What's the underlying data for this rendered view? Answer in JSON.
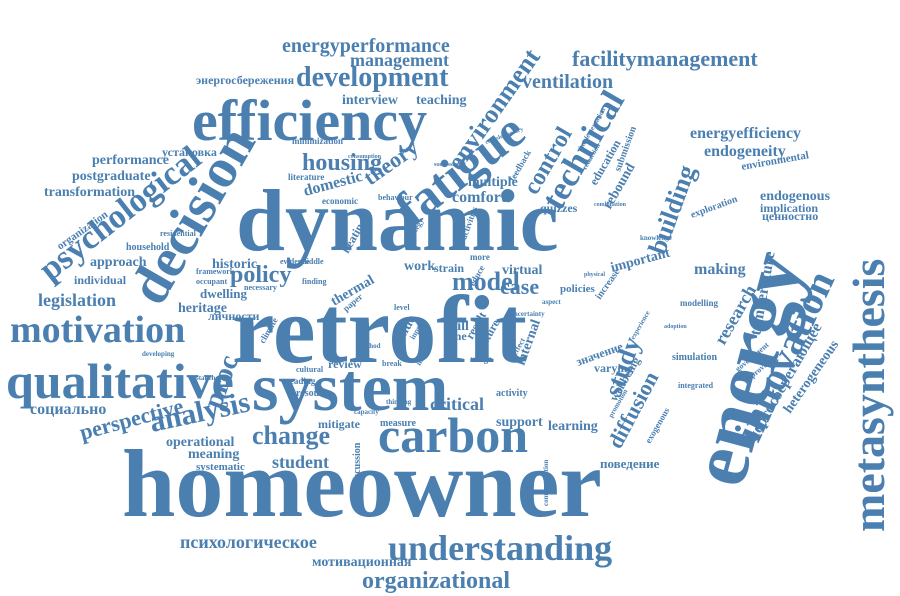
{
  "colors": {
    "word": "#4a7fb0",
    "background": "#ffffff"
  },
  "words": {
    "homeowner": "homeowner",
    "retrofit": "retrofit",
    "dynamic": "dynamic",
    "system": "system",
    "energy": "energy",
    "efficiency": "efficiency",
    "carbon": "carbon",
    "decision": "decision",
    "fatigue": "fatigue",
    "metasynthesis": "metasynthesis",
    "innovation": "innovation",
    "qualitative": "qualitative",
    "motivation": "motivation",
    "understanding": "understanding",
    "psychological": "psychological",
    "technical": "technical",
    "development": "development",
    "environment": "environment",
    "energyperformance": "energyperformance",
    "facilitymanagement": "facilitymanagement",
    "management": "management",
    "ventilation": "ventilation",
    "organizational": "organizational",
    "analysis": "analysis",
    "change": "change",
    "control": "control",
    "building": "building",
    "housing": "housing",
    "theory": "theory",
    "policy": "policy",
    "model": "model",
    "study": "study",
    "diffusion": "diffusion",
    "perspective": "perspective",
    "legislation": "legislation",
    "student": "student",
    "case": "case",
    "proc": "proc",
    "energyefficiency": "energyefficiency",
    "endogeneity": "endogeneity",
    "research": "research",
    "temperature": "temperature",
    "making": "making",
    "important": "important",
    "energosberegayushchee": "энергосберегающее",
    "heterogeneous": "heterogeneous",
    "psikhologicheskoe": "психологическое",
    "motivatsionnaya": "мотивационная",
    "povedenie": "поведение",
    "sotsialno": "социально",
    "energosberezheniya": "энергосбережения",
    "ustanovka": "установка",
    "lichnosti": "личности",
    "tsennostno": "ценностно",
    "performance": "performance",
    "postgraduate": "postgraduate",
    "transformation": "transformation",
    "organization": "organization",
    "approach": "approach",
    "individual": "individual",
    "household": "household",
    "residential": "residential",
    "historic": "historic",
    "dwelling": "dwelling",
    "heritage": "heritage",
    "framework": "framework",
    "occupant": "occupant",
    "domestic": "domestic",
    "comfort": "comfort",
    "multiple": "multiple",
    "rebound": "rebound",
    "education": "education",
    "interview": "interview",
    "teaching": "teaching",
    "minimization": "minimization",
    "literature": "literature",
    "economic": "economic",
    "behaviour": "behaviour",
    "quizzes": "quizzes",
    "work": "work",
    "strain": "strain",
    "virtual": "virtual",
    "policies": "policies",
    "increase": "increase",
    "thermal": "thermal",
    "heating": "heating",
    "skill": "skill",
    "time": "time",
    "value": "value",
    "internal": "internal",
    "future": "future",
    "result": "result",
    "znachenie": "значение",
    "varying": "varying",
    "wellbeing": "wellbeing",
    "simulation": "simulation",
    "integrated": "integrated",
    "modelling": "modelling",
    "exploration": "exploration",
    "endogenous": "endogenous",
    "implication": "implication",
    "environmental": "environmental",
    "submission": "submission",
    "critical": "critical",
    "support": "support",
    "learning": "learning",
    "mitigate": "mitigate",
    "measure": "measure",
    "review": "review",
    "resource": "resource",
    "reading": "reading",
    "cultural": "cultural",
    "climate": "climate",
    "operational": "operational",
    "meaning": "meaning",
    "systematic": "systematic",
    "discussion": "discussion",
    "activity": "activity",
    "range": "range",
    "necessary": "necessary",
    "finding": "finding",
    "evidence": "evidence",
    "middle": "middle",
    "developing": "developing",
    "stakeholder": "stakeholder",
    "government": "government",
    "improvement": "improvement",
    "implementation": "implementation",
    "reduction": "reduction",
    "exogenous": "exogenous",
    "feedback": "feedback",
    "strategy": "strategy",
    "paper": "paper",
    "level": "level",
    "more": "more",
    "reduce": "reduce",
    "break": "break",
    "method": "method",
    "thinking": "thinking",
    "capacity": "capacity",
    "aspect": "aspect",
    "combination": "combination",
    "communication": "communication",
    "promotion": "promotion",
    "experience": "experience",
    "knowledge": "knowledge",
    "adoption": "adoption",
    "effect": "effect",
    "activities": "activities",
    "impact": "impact",
    "input": "input",
    "complementary": "complementary",
    "uncertainty": "uncertainty",
    "different": "different",
    "consumption": "consumption",
    "physical": "physical",
    "successive": "successive"
  }
}
